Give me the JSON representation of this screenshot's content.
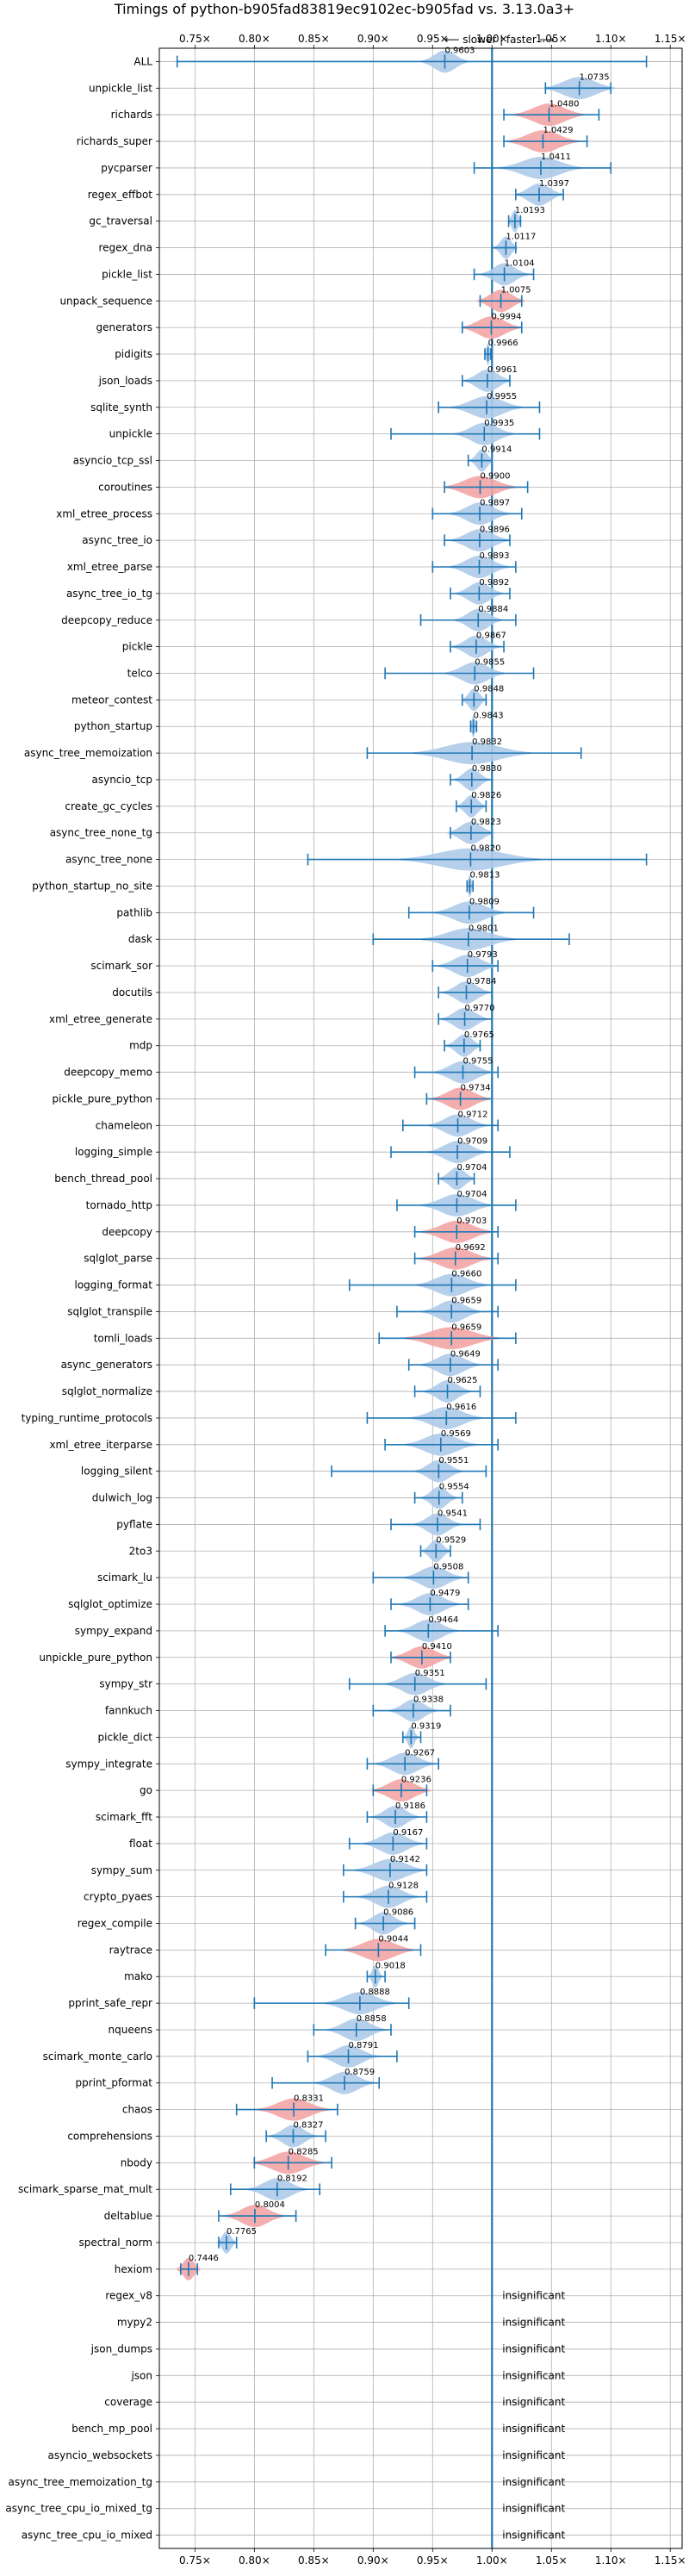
{
  "chart_data": {
    "type": "violin",
    "title": "Timings of python-b905fad83819ec9102ec-b905fad vs. 3.13.0a3+",
    "direction_label": "⟵ slower | faster ⟶",
    "xlim": [
      0.72,
      1.16
    ],
    "x_ticks": [
      0.75,
      0.8,
      0.85,
      0.9,
      0.95,
      1.0,
      1.05,
      1.1,
      1.15
    ],
    "x_tick_labels": [
      "0.75×",
      "0.80×",
      "0.85×",
      "0.90×",
      "0.95×",
      "1.00×",
      "1.05×",
      "1.10×",
      "1.15×"
    ],
    "reference_line": 1.0,
    "grid": true,
    "colors": {
      "violin": "#aecbea",
      "violin_significant": "#f4a5a5",
      "whisker": "#1f77b4",
      "reference": "#1f77b4",
      "grid": "#b0b0b0"
    },
    "insignificant_label": "insignificant",
    "benchmarks": [
      {
        "name": "ALL",
        "value": 0.9603,
        "label": "0.9603",
        "lo": 0.735,
        "hi": 1.13,
        "width": 0.02,
        "sig": false
      },
      {
        "name": "unpickle_list",
        "value": 1.0735,
        "label": "1.0735",
        "lo": 1.045,
        "hi": 1.1,
        "width": 0.03,
        "sig": false
      },
      {
        "name": "richards",
        "value": 1.048,
        "label": "1.0480",
        "lo": 1.01,
        "hi": 1.09,
        "width": 0.03,
        "sig": true
      },
      {
        "name": "richards_super",
        "value": 1.0429,
        "label": "1.0429",
        "lo": 1.01,
        "hi": 1.08,
        "width": 0.03,
        "sig": true
      },
      {
        "name": "pycparser",
        "value": 1.0411,
        "label": "1.0411",
        "lo": 0.985,
        "hi": 1.1,
        "width": 0.035,
        "sig": false
      },
      {
        "name": "regex_effbot",
        "value": 1.0397,
        "label": "1.0397",
        "lo": 1.02,
        "hi": 1.06,
        "width": 0.02,
        "sig": false
      },
      {
        "name": "gc_traversal",
        "value": 1.0193,
        "label": "1.0193",
        "lo": 1.014,
        "hi": 1.024,
        "width": 0.006,
        "sig": false
      },
      {
        "name": "regex_dna",
        "value": 1.0117,
        "label": "1.0117",
        "lo": 1.0,
        "hi": 1.02,
        "width": 0.01,
        "sig": false
      },
      {
        "name": "pickle_list",
        "value": 1.0104,
        "label": "1.0104",
        "lo": 0.985,
        "hi": 1.035,
        "width": 0.02,
        "sig": false
      },
      {
        "name": "unpack_sequence",
        "value": 1.0075,
        "label": "1.0075",
        "lo": 0.99,
        "hi": 1.025,
        "width": 0.02,
        "sig": true
      },
      {
        "name": "generators",
        "value": 0.9994,
        "label": "0.9994",
        "lo": 0.975,
        "hi": 1.025,
        "width": 0.025,
        "sig": true
      },
      {
        "name": "pidigits",
        "value": 0.9966,
        "label": "0.9966",
        "lo": 0.994,
        "hi": 0.999,
        "width": 0.003,
        "sig": false
      },
      {
        "name": "json_loads",
        "value": 0.9961,
        "label": "0.9961",
        "lo": 0.975,
        "hi": 1.015,
        "width": 0.02,
        "sig": false
      },
      {
        "name": "sqlite_synth",
        "value": 0.9955,
        "label": "0.9955",
        "lo": 0.955,
        "hi": 1.04,
        "width": 0.03,
        "sig": false
      },
      {
        "name": "unpickle",
        "value": 0.9935,
        "label": "0.9935",
        "lo": 0.915,
        "hi": 1.04,
        "width": 0.025,
        "sig": false
      },
      {
        "name": "asyncio_tcp_ssl",
        "value": 0.9914,
        "label": "0.9914",
        "lo": 0.98,
        "hi": 1.0,
        "width": 0.01,
        "sig": false
      },
      {
        "name": "coroutines",
        "value": 0.99,
        "label": "0.9900",
        "lo": 0.96,
        "hi": 1.03,
        "width": 0.03,
        "sig": true
      },
      {
        "name": "xml_etree_process",
        "value": 0.9897,
        "label": "0.9897",
        "lo": 0.95,
        "hi": 1.025,
        "width": 0.025,
        "sig": false
      },
      {
        "name": "async_tree_io",
        "value": 0.9896,
        "label": "0.9896",
        "lo": 0.96,
        "hi": 1.015,
        "width": 0.025,
        "sig": false
      },
      {
        "name": "xml_etree_parse",
        "value": 0.9893,
        "label": "0.9893",
        "lo": 0.95,
        "hi": 1.02,
        "width": 0.025,
        "sig": false
      },
      {
        "name": "async_tree_io_tg",
        "value": 0.9892,
        "label": "0.9892",
        "lo": 0.965,
        "hi": 1.015,
        "width": 0.02,
        "sig": false
      },
      {
        "name": "deepcopy_reduce",
        "value": 0.9884,
        "label": "0.9884",
        "lo": 0.94,
        "hi": 1.02,
        "width": 0.02,
        "sig": false
      },
      {
        "name": "pickle",
        "value": 0.9867,
        "label": "0.9867",
        "lo": 0.965,
        "hi": 1.01,
        "width": 0.02,
        "sig": false
      },
      {
        "name": "telco",
        "value": 0.9855,
        "label": "0.9855",
        "lo": 0.91,
        "hi": 1.035,
        "width": 0.025,
        "sig": false
      },
      {
        "name": "meteor_contest",
        "value": 0.9848,
        "label": "0.9848",
        "lo": 0.975,
        "hi": 0.995,
        "width": 0.01,
        "sig": false
      },
      {
        "name": "python_startup",
        "value": 0.9843,
        "label": "0.9843",
        "lo": 0.982,
        "hi": 0.987,
        "width": 0.003,
        "sig": false
      },
      {
        "name": "async_tree_memoization",
        "value": 0.9832,
        "label": "0.9832",
        "lo": 0.895,
        "hi": 1.075,
        "width": 0.05,
        "sig": false
      },
      {
        "name": "asyncio_tcp",
        "value": 0.983,
        "label": "0.9830",
        "lo": 0.965,
        "hi": 1.0,
        "width": 0.015,
        "sig": false
      },
      {
        "name": "create_gc_cycles",
        "value": 0.9826,
        "label": "0.9826",
        "lo": 0.97,
        "hi": 0.995,
        "width": 0.012,
        "sig": false
      },
      {
        "name": "async_tree_none_tg",
        "value": 0.9823,
        "label": "0.9823",
        "lo": 0.965,
        "hi": 1.0,
        "width": 0.02,
        "sig": false
      },
      {
        "name": "async_tree_none",
        "value": 0.982,
        "label": "0.9820",
        "lo": 0.845,
        "hi": 1.13,
        "width": 0.06,
        "sig": false
      },
      {
        "name": "python_startup_no_site",
        "value": 0.9813,
        "label": "0.9813",
        "lo": 0.979,
        "hi": 0.984,
        "width": 0.003,
        "sig": false
      },
      {
        "name": "pathlib",
        "value": 0.9809,
        "label": "0.9809",
        "lo": 0.93,
        "hi": 1.035,
        "width": 0.03,
        "sig": false
      },
      {
        "name": "dask",
        "value": 0.9801,
        "label": "0.9801",
        "lo": 0.9,
        "hi": 1.065,
        "width": 0.04,
        "sig": false
      },
      {
        "name": "scimark_sor",
        "value": 0.9793,
        "label": "0.9793",
        "lo": 0.95,
        "hi": 1.005,
        "width": 0.025,
        "sig": false
      },
      {
        "name": "docutils",
        "value": 0.9784,
        "label": "0.9784",
        "lo": 0.955,
        "hi": 1.0,
        "width": 0.02,
        "sig": false
      },
      {
        "name": "xml_etree_generate",
        "value": 0.977,
        "label": "0.9770",
        "lo": 0.955,
        "hi": 1.0,
        "width": 0.02,
        "sig": false
      },
      {
        "name": "mdp",
        "value": 0.9765,
        "label": "0.9765",
        "lo": 0.96,
        "hi": 0.99,
        "width": 0.015,
        "sig": false
      },
      {
        "name": "deepcopy_memo",
        "value": 0.9755,
        "label": "0.9755",
        "lo": 0.935,
        "hi": 1.005,
        "width": 0.025,
        "sig": false
      },
      {
        "name": "pickle_pure_python",
        "value": 0.9734,
        "label": "0.9734",
        "lo": 0.945,
        "hi": 1.0,
        "width": 0.025,
        "sig": true
      },
      {
        "name": "chameleon",
        "value": 0.9712,
        "label": "0.9712",
        "lo": 0.925,
        "hi": 1.005,
        "width": 0.025,
        "sig": false
      },
      {
        "name": "logging_simple",
        "value": 0.9709,
        "label": "0.9709",
        "lo": 0.915,
        "hi": 1.015,
        "width": 0.025,
        "sig": false
      },
      {
        "name": "bench_thread_pool",
        "value": 0.9704,
        "label": "0.9704",
        "lo": 0.955,
        "hi": 0.985,
        "width": 0.015,
        "sig": false
      },
      {
        "name": "tornado_http",
        "value": 0.9704,
        "label": "0.9704",
        "lo": 0.92,
        "hi": 1.02,
        "width": 0.03,
        "sig": false
      },
      {
        "name": "deepcopy",
        "value": 0.9703,
        "label": "0.9703",
        "lo": 0.935,
        "hi": 1.005,
        "width": 0.03,
        "sig": true
      },
      {
        "name": "sqlglot_parse",
        "value": 0.9692,
        "label": "0.9692",
        "lo": 0.935,
        "hi": 1.005,
        "width": 0.03,
        "sig": true
      },
      {
        "name": "logging_format",
        "value": 0.966,
        "label": "0.9660",
        "lo": 0.88,
        "hi": 1.02,
        "width": 0.03,
        "sig": false
      },
      {
        "name": "sqlglot_transpile",
        "value": 0.9659,
        "label": "0.9659",
        "lo": 0.92,
        "hi": 1.005,
        "width": 0.025,
        "sig": false
      },
      {
        "name": "tomli_loads",
        "value": 0.9659,
        "label": "0.9659",
        "lo": 0.905,
        "hi": 1.02,
        "width": 0.04,
        "sig": true
      },
      {
        "name": "async_generators",
        "value": 0.9649,
        "label": "0.9649",
        "lo": 0.93,
        "hi": 1.005,
        "width": 0.025,
        "sig": false
      },
      {
        "name": "sqlglot_normalize",
        "value": 0.9625,
        "label": "0.9625",
        "lo": 0.935,
        "hi": 0.99,
        "width": 0.02,
        "sig": false
      },
      {
        "name": "typing_runtime_protocols",
        "value": 0.9616,
        "label": "0.9616",
        "lo": 0.895,
        "hi": 1.02,
        "width": 0.03,
        "sig": false
      },
      {
        "name": "xml_etree_iterparse",
        "value": 0.9569,
        "label": "0.9569",
        "lo": 0.91,
        "hi": 1.005,
        "width": 0.03,
        "sig": false
      },
      {
        "name": "logging_silent",
        "value": 0.9551,
        "label": "0.9551",
        "lo": 0.865,
        "hi": 0.995,
        "width": 0.02,
        "sig": false
      },
      {
        "name": "dulwich_log",
        "value": 0.9554,
        "label": "0.9554",
        "lo": 0.935,
        "hi": 0.975,
        "width": 0.015,
        "sig": false
      },
      {
        "name": "pyflate",
        "value": 0.9541,
        "label": "0.9541",
        "lo": 0.915,
        "hi": 0.99,
        "width": 0.02,
        "sig": false
      },
      {
        "name": "2to3",
        "value": 0.9529,
        "label": "0.9529",
        "lo": 0.94,
        "hi": 0.965,
        "width": 0.012,
        "sig": false
      },
      {
        "name": "scimark_lu",
        "value": 0.9508,
        "label": "0.9508",
        "lo": 0.9,
        "hi": 0.98,
        "width": 0.025,
        "sig": false
      },
      {
        "name": "sqlglot_optimize",
        "value": 0.9479,
        "label": "0.9479",
        "lo": 0.915,
        "hi": 0.98,
        "width": 0.025,
        "sig": false
      },
      {
        "name": "sympy_expand",
        "value": 0.9464,
        "label": "0.9464",
        "lo": 0.91,
        "hi": 1.005,
        "width": 0.025,
        "sig": false
      },
      {
        "name": "unpickle_pure_python",
        "value": 0.941,
        "label": "0.9410",
        "lo": 0.915,
        "hi": 0.965,
        "width": 0.025,
        "sig": true
      },
      {
        "name": "sympy_str",
        "value": 0.9351,
        "label": "0.9351",
        "lo": 0.88,
        "hi": 0.995,
        "width": 0.025,
        "sig": false
      },
      {
        "name": "fannkuch",
        "value": 0.9338,
        "label": "0.9338",
        "lo": 0.9,
        "hi": 0.965,
        "width": 0.02,
        "sig": false
      },
      {
        "name": "pickle_dict",
        "value": 0.9319,
        "label": "0.9319",
        "lo": 0.925,
        "hi": 0.94,
        "width": 0.006,
        "sig": false
      },
      {
        "name": "sympy_integrate",
        "value": 0.9267,
        "label": "0.9267",
        "lo": 0.895,
        "hi": 0.955,
        "width": 0.025,
        "sig": false
      },
      {
        "name": "go",
        "value": 0.9236,
        "label": "0.9236",
        "lo": 0.9,
        "hi": 0.945,
        "width": 0.025,
        "sig": true
      },
      {
        "name": "scimark_fft",
        "value": 0.9186,
        "label": "0.9186",
        "lo": 0.895,
        "hi": 0.945,
        "width": 0.02,
        "sig": false
      },
      {
        "name": "float",
        "value": 0.9167,
        "label": "0.9167",
        "lo": 0.88,
        "hi": 0.945,
        "width": 0.025,
        "sig": false
      },
      {
        "name": "sympy_sum",
        "value": 0.9142,
        "label": "0.9142",
        "lo": 0.875,
        "hi": 0.945,
        "width": 0.03,
        "sig": false
      },
      {
        "name": "crypto_pyaes",
        "value": 0.9128,
        "label": "0.9128",
        "lo": 0.875,
        "hi": 0.945,
        "width": 0.025,
        "sig": false
      },
      {
        "name": "regex_compile",
        "value": 0.9086,
        "label": "0.9086",
        "lo": 0.885,
        "hi": 0.935,
        "width": 0.02,
        "sig": false
      },
      {
        "name": "raytrace",
        "value": 0.9044,
        "label": "0.9044",
        "lo": 0.86,
        "hi": 0.94,
        "width": 0.03,
        "sig": true
      },
      {
        "name": "mako",
        "value": 0.9018,
        "label": "0.9018",
        "lo": 0.895,
        "hi": 0.91,
        "width": 0.006,
        "sig": false
      },
      {
        "name": "pprint_safe_repr",
        "value": 0.8888,
        "label": "0.8888",
        "lo": 0.8,
        "hi": 0.93,
        "width": 0.03,
        "sig": false
      },
      {
        "name": "nqueens",
        "value": 0.8858,
        "label": "0.8858",
        "lo": 0.85,
        "hi": 0.915,
        "width": 0.025,
        "sig": false
      },
      {
        "name": "scimark_monte_carlo",
        "value": 0.8791,
        "label": "0.8791",
        "lo": 0.845,
        "hi": 0.92,
        "width": 0.025,
        "sig": false
      },
      {
        "name": "pprint_pformat",
        "value": 0.8759,
        "label": "0.8759",
        "lo": 0.815,
        "hi": 0.905,
        "width": 0.025,
        "sig": false
      },
      {
        "name": "chaos",
        "value": 0.8331,
        "label": "0.8331",
        "lo": 0.785,
        "hi": 0.87,
        "width": 0.03,
        "sig": true
      },
      {
        "name": "comprehensions",
        "value": 0.8327,
        "label": "0.8327",
        "lo": 0.81,
        "hi": 0.86,
        "width": 0.02,
        "sig": false
      },
      {
        "name": "nbody",
        "value": 0.8285,
        "label": "0.8285",
        "lo": 0.8,
        "hi": 0.865,
        "width": 0.03,
        "sig": true
      },
      {
        "name": "scimark_sparse_mat_mult",
        "value": 0.8192,
        "label": "0.8192",
        "lo": 0.78,
        "hi": 0.855,
        "width": 0.025,
        "sig": false
      },
      {
        "name": "deltablue",
        "value": 0.8004,
        "label": "0.8004",
        "lo": 0.77,
        "hi": 0.835,
        "width": 0.025,
        "sig": true
      },
      {
        "name": "spectral_norm",
        "value": 0.7765,
        "label": "0.7765",
        "lo": 0.77,
        "hi": 0.785,
        "width": 0.008,
        "sig": false
      },
      {
        "name": "hexiom",
        "value": 0.7446,
        "label": "0.7446",
        "lo": 0.738,
        "hi": 0.752,
        "width": 0.01,
        "sig": true
      },
      {
        "name": "regex_v8",
        "value": null,
        "label": "insignificant"
      },
      {
        "name": "mypy2",
        "value": null,
        "label": "insignificant"
      },
      {
        "name": "json_dumps",
        "value": null,
        "label": "insignificant"
      },
      {
        "name": "json",
        "value": null,
        "label": "insignificant"
      },
      {
        "name": "coverage",
        "value": null,
        "label": "insignificant"
      },
      {
        "name": "bench_mp_pool",
        "value": null,
        "label": "insignificant"
      },
      {
        "name": "asyncio_websockets",
        "value": null,
        "label": "insignificant"
      },
      {
        "name": "async_tree_memoization_tg",
        "value": null,
        "label": "insignificant"
      },
      {
        "name": "async_tree_cpu_io_mixed_tg",
        "value": null,
        "label": "insignificant"
      },
      {
        "name": "async_tree_cpu_io_mixed",
        "value": null,
        "label": "insignificant"
      }
    ]
  }
}
